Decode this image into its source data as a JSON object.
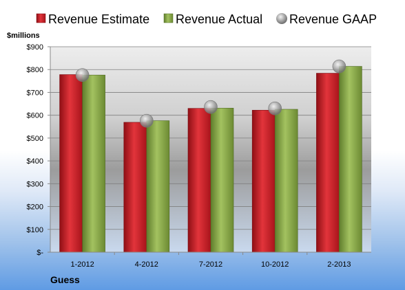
{
  "chart_data": {
    "type": "bar",
    "company": "Guess",
    "unit_label": "$millions",
    "categories": [
      "1-2012",
      "4-2012",
      "7-2012",
      "10-2012",
      "2-2013"
    ],
    "series": [
      {
        "name": "Revenue Estimate",
        "kind": "bar",
        "color": "#cc1f26",
        "values": [
          778,
          569,
          630,
          622,
          784
        ]
      },
      {
        "name": "Revenue Actual",
        "kind": "bar",
        "color": "#8aaa4c",
        "values": [
          776,
          576,
          631,
          626,
          814
        ]
      },
      {
        "name": "Revenue GAAP",
        "kind": "marker",
        "color": "#9a9a9a",
        "values": [
          776,
          576,
          636,
          630,
          814
        ]
      }
    ],
    "ylim": [
      0,
      900
    ],
    "yticks": [
      {
        "value": 0,
        "label": "$-"
      },
      {
        "value": 100,
        "label": "$100"
      },
      {
        "value": 200,
        "label": "$200"
      },
      {
        "value": 300,
        "label": "$300"
      },
      {
        "value": 400,
        "label": "$400"
      },
      {
        "value": 500,
        "label": "$500"
      },
      {
        "value": 600,
        "label": "$600"
      },
      {
        "value": 700,
        "label": "$700"
      },
      {
        "value": 800,
        "label": "$800"
      },
      {
        "value": 900,
        "label": "$900"
      }
    ],
    "grid": true,
    "legend_position": "top"
  }
}
